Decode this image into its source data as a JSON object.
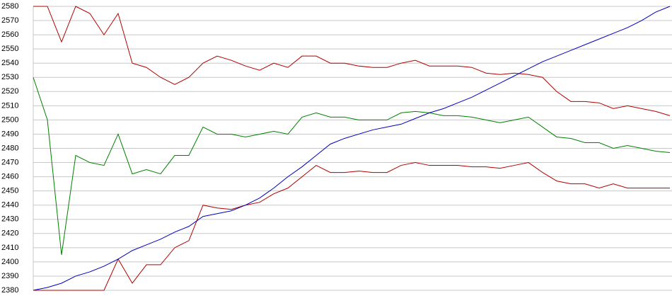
{
  "chart_data": {
    "type": "line",
    "categories": [
      null,
      null,
      null,
      null,
      null,
      null,
      null,
      null,
      null,
      null,
      null,
      null,
      null,
      null,
      null,
      null,
      null,
      null,
      null,
      null,
      null,
      null,
      null,
      null,
      null,
      null,
      null,
      null,
      null,
      null,
      null,
      null,
      null,
      null,
      null,
      null,
      null,
      null,
      null,
      null,
      null,
      null,
      null,
      null,
      null,
      null
    ],
    "series": [
      {
        "color": "#b00000",
        "values": [
          2580,
          2580,
          2555,
          2580,
          2575,
          2560,
          2575,
          2540,
          2537,
          2530,
          2525,
          2530,
          2540,
          2545,
          2542,
          2538,
          2535,
          2540,
          2537,
          2545,
          2545,
          2540,
          2540,
          2538,
          2537,
          2537,
          2540,
          2542,
          2538,
          2538,
          2538,
          2537,
          2533,
          2532,
          2533,
          2532,
          2530,
          2520,
          2513,
          2513,
          2512,
          2508,
          2510,
          2508,
          2506,
          2503
        ]
      },
      {
        "color": "#008000",
        "values": [
          2530,
          2500,
          2405,
          2475,
          2470,
          2468,
          2490,
          2462,
          2465,
          2462,
          2475,
          2475,
          2495,
          2490,
          2490,
          2488,
          2490,
          2492,
          2490,
          2502,
          2505,
          2502,
          2502,
          2500,
          2500,
          2500,
          2505,
          2506,
          2505,
          2503,
          2503,
          2502,
          2500,
          2498,
          2500,
          2502,
          2495,
          2488,
          2487,
          2484,
          2484,
          2480,
          2482,
          2480,
          2478,
          2477
        ]
      },
      {
        "color": "#b00000",
        "values": [
          2380,
          2380,
          2380,
          2380,
          2380,
          2380,
          2402,
          2385,
          2398,
          2398,
          2410,
          2415,
          2440,
          2438,
          2437,
          2440,
          2442,
          2448,
          2452,
          2460,
          2468,
          2463,
          2463,
          2464,
          2463,
          2463,
          2468,
          2470,
          2468,
          2468,
          2468,
          2467,
          2467,
          2466,
          2468,
          2470,
          2463,
          2457,
          2455,
          2455,
          2452,
          2455,
          2452,
          2452,
          2452,
          2452
        ]
      },
      {
        "color": "#0000c0",
        "values": [
          2380,
          2382,
          2385,
          2390,
          2393,
          2397,
          2402,
          2408,
          2412,
          2416,
          2421,
          2425,
          2432,
          2434,
          2436,
          2440,
          2445,
          2452,
          2460,
          2467,
          2475,
          2483,
          2487,
          2490,
          2493,
          2495,
          2497,
          2501,
          2505,
          2508,
          2512,
          2516,
          2521,
          2526,
          2531,
          2536,
          2541,
          2545,
          2549,
          2553,
          2557,
          2561,
          2565,
          2570,
          2576,
          2580
        ]
      }
    ],
    "ylim": [
      2380,
      2580
    ],
    "yticks": [
      2380,
      2390,
      2400,
      2410,
      2420,
      2430,
      2440,
      2450,
      2460,
      2470,
      2480,
      2490,
      2500,
      2510,
      2520,
      2530,
      2540,
      2550,
      2560,
      2570,
      2580
    ],
    "grid": true
  }
}
